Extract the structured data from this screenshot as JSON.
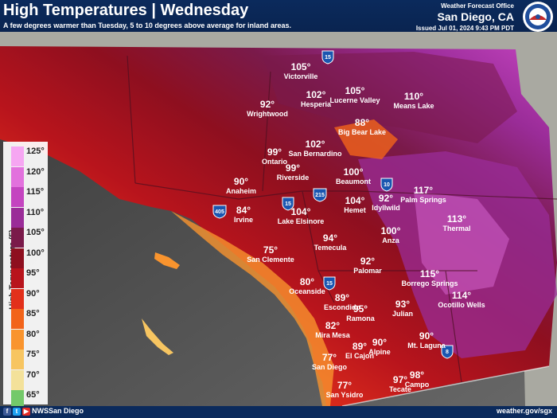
{
  "header": {
    "title": "High Temperatures | Wednesday",
    "subtitle": "A few degrees warmer than Tuesday, 5 to 10 degrees above average for inland areas.",
    "office_line": "Weather Forecast Office",
    "office_city": "San Diego, CA",
    "issued": "Issued Jul 01, 2024 9:43 PM PDT",
    "logo_icon": "nws-logo-icon"
  },
  "legend": {
    "title": "High Temperature (F)",
    "ticks": [
      "125°",
      "120°",
      "115°",
      "110°",
      "105°",
      "100°",
      "95°",
      "90°",
      "85°",
      "80°",
      "75°",
      "70°",
      "65°"
    ],
    "colors": [
      "#f6a6f2",
      "#e271dd",
      "#c444c0",
      "#9a2c98",
      "#7a1a4a",
      "#8e0f1f",
      "#b8141c",
      "#e2301b",
      "#f2641a",
      "#f9942e",
      "#f7c561",
      "#f3e19a",
      "#74c96a"
    ]
  },
  "places": [
    {
      "city": "Victorville",
      "temp": "105°"
    },
    {
      "city": "Hesperia",
      "temp": "102°"
    },
    {
      "city": "Lucerne Valley",
      "temp": "105°"
    },
    {
      "city": "Means Lake",
      "temp": "110°"
    },
    {
      "city": "Wrightwood",
      "temp": "92°"
    },
    {
      "city": "Big Bear Lake",
      "temp": "88°"
    },
    {
      "city": "San Bernardino",
      "temp": "102°"
    },
    {
      "city": "Ontario",
      "temp": "99°"
    },
    {
      "city": "Riverside",
      "temp": "99°"
    },
    {
      "city": "Beaumont",
      "temp": "100°"
    },
    {
      "city": "Anaheim",
      "temp": "90°"
    },
    {
      "city": "Idyllwild",
      "temp": "92°"
    },
    {
      "city": "Palm Springs",
      "temp": "117°"
    },
    {
      "city": "Hemet",
      "temp": "104°"
    },
    {
      "city": "Irvine",
      "temp": "84°"
    },
    {
      "city": "Lake Elsinore",
      "temp": "104°"
    },
    {
      "city": "Thermal",
      "temp": "113°"
    },
    {
      "city": "Anza",
      "temp": "100°"
    },
    {
      "city": "Temecula",
      "temp": "94°"
    },
    {
      "city": "San Clemente",
      "temp": "75°"
    },
    {
      "city": "Palomar",
      "temp": "92°"
    },
    {
      "city": "Borrego Springs",
      "temp": "115°"
    },
    {
      "city": "Oceanside",
      "temp": "80°"
    },
    {
      "city": "Ocotillo Wells",
      "temp": "114°"
    },
    {
      "city": "Escondido",
      "temp": "89°"
    },
    {
      "city": "Ramona",
      "temp": "95°"
    },
    {
      "city": "Julian",
      "temp": "93°"
    },
    {
      "city": "Mira Mesa",
      "temp": "82°"
    },
    {
      "city": "Alpine",
      "temp": "90°"
    },
    {
      "city": "Mt. Laguna",
      "temp": "90°"
    },
    {
      "city": "El Cajon",
      "temp": "89°"
    },
    {
      "city": "San Diego",
      "temp": "77°"
    },
    {
      "city": "Campo",
      "temp": "98°"
    },
    {
      "city": "Tecate",
      "temp": "97°"
    },
    {
      "city": "San Ysidro",
      "temp": "77°"
    }
  ],
  "highways": [
    "15",
    "10",
    "215",
    "405",
    "15",
    "15",
    "8"
  ],
  "footer": {
    "social": [
      "f",
      "t",
      "▶"
    ],
    "handle": "NWSSan Diego",
    "url": "weather.gov/sgx"
  }
}
